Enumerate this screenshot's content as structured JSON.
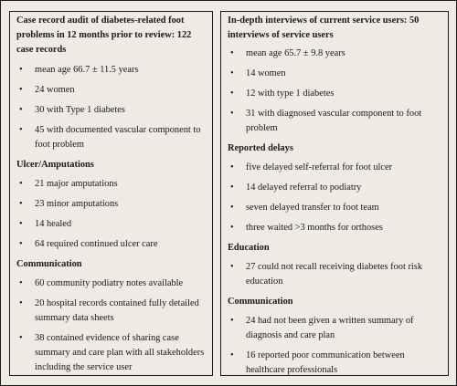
{
  "left": {
    "heading": "Case record audit of diabetes-related foot problems in 12 months prior to review: 122 case records",
    "intro_items": [
      "mean age 66.7 ± 11.5 years",
      "24 women",
      "30 with Type 1 diabetes",
      "45 with documented vascular component to foot problem"
    ],
    "ulcer": {
      "title": "Ulcer/Amputations",
      "items": [
        "21 major amputations",
        "23 minor amputations",
        "14 healed",
        "64 required continued ulcer care"
      ]
    },
    "communication": {
      "title": "Communication",
      "items": [
        "60 community podiatry notes available",
        "20 hospital records contained fully detailed summary data sheets",
        "38 contained evidence of sharing case summary and care plan with all stakeholders including the service user"
      ]
    }
  },
  "right": {
    "heading": "In-depth interviews of current service users: 50 interviews of service users",
    "intro_items": [
      "mean age 65.7 ± 9.8 years",
      "14 women",
      "12 with type 1 diabetes",
      "31 with diagnosed vascular component to foot problem"
    ],
    "delays": {
      "title": "Reported delays",
      "items": [
        "five delayed self-referral for foot ulcer",
        "14 delayed referral to podiatry",
        "seven delayed transfer to foot team",
        "three waited >3 months for orthoses"
      ]
    },
    "education": {
      "title": "Education",
      "items": [
        "27 could not recall receiving diabetes foot risk education"
      ]
    },
    "communication": {
      "title": "Communication",
      "items": [
        "24 had not been given a written summary of diagnosis and care plan",
        "16 reported poor communication between healthcare professionals"
      ]
    }
  },
  "bullet_char": "•"
}
